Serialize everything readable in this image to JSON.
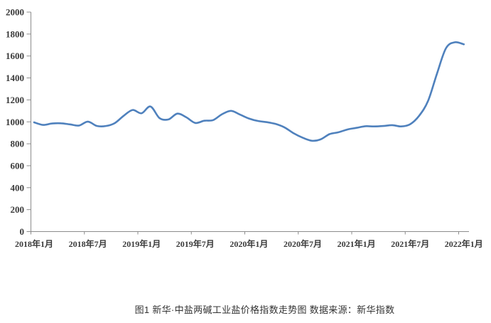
{
  "figure": {
    "caption": "图1 新华·中盐两碱工业盐价格指数走势图 数据来源：新华指数"
  },
  "chart_data": {
    "type": "line",
    "title": "",
    "xlabel": "",
    "ylabel": "",
    "grid": false,
    "legend": "none",
    "smooth": true,
    "line_color": "#4F81BD",
    "axis_color": "#8c8c8c",
    "tick_label_color": "#3a3a3a",
    "ylim": [
      0,
      2000
    ],
    "y_ticks": [
      0,
      200,
      400,
      600,
      800,
      1000,
      1200,
      1400,
      1600,
      1800,
      2000
    ],
    "x_tick_labels": [
      "2018年1月",
      "2018年7月",
      "2019年1月",
      "2019年7月",
      "2020年1月",
      "2020年7月",
      "2021年1月",
      "2021年7月",
      "2022年1月"
    ],
    "x": [
      "2018年1月",
      "2018年2月",
      "2018年3月",
      "2018年4月",
      "2018年5月",
      "2018年6月",
      "2018年7月",
      "2018年8月",
      "2018年9月",
      "2018年10月",
      "2018年11月",
      "2018年12月",
      "2019年1月",
      "2019年2月",
      "2019年3月",
      "2019年4月",
      "2019年5月",
      "2019年6月",
      "2019年7月",
      "2019年8月",
      "2019年9月",
      "2019年10月",
      "2019年11月",
      "2019年12月",
      "2020年1月",
      "2020年2月",
      "2020年3月",
      "2020年4月",
      "2020年5月",
      "2020年6月",
      "2020年7月",
      "2020年8月",
      "2020年9月",
      "2020年10月",
      "2020年11月",
      "2020年12月",
      "2021年1月",
      "2021年2月",
      "2021年3月",
      "2021年4月",
      "2021年5月",
      "2021年6月",
      "2021年7月",
      "2021年8月",
      "2021年9月",
      "2021年10月",
      "2021年11月",
      "2021年12月",
      "2022年1月"
    ],
    "series": [
      {
        "name": "新华·中盐两碱工业盐价格指数",
        "values": [
          995,
          972,
          985,
          987,
          977,
          966,
          1002,
          963,
          962,
          988,
          1055,
          1108,
          1078,
          1140,
          1035,
          1022,
          1075,
          1041,
          990,
          1010,
          1016,
          1070,
          1100,
          1066,
          1030,
          1008,
          997,
          980,
          948,
          895,
          855,
          828,
          840,
          888,
          905,
          930,
          945,
          960,
          958,
          962,
          970,
          958,
          978,
          1055,
          1190,
          1440,
          1670,
          1725,
          1706
        ]
      }
    ]
  }
}
